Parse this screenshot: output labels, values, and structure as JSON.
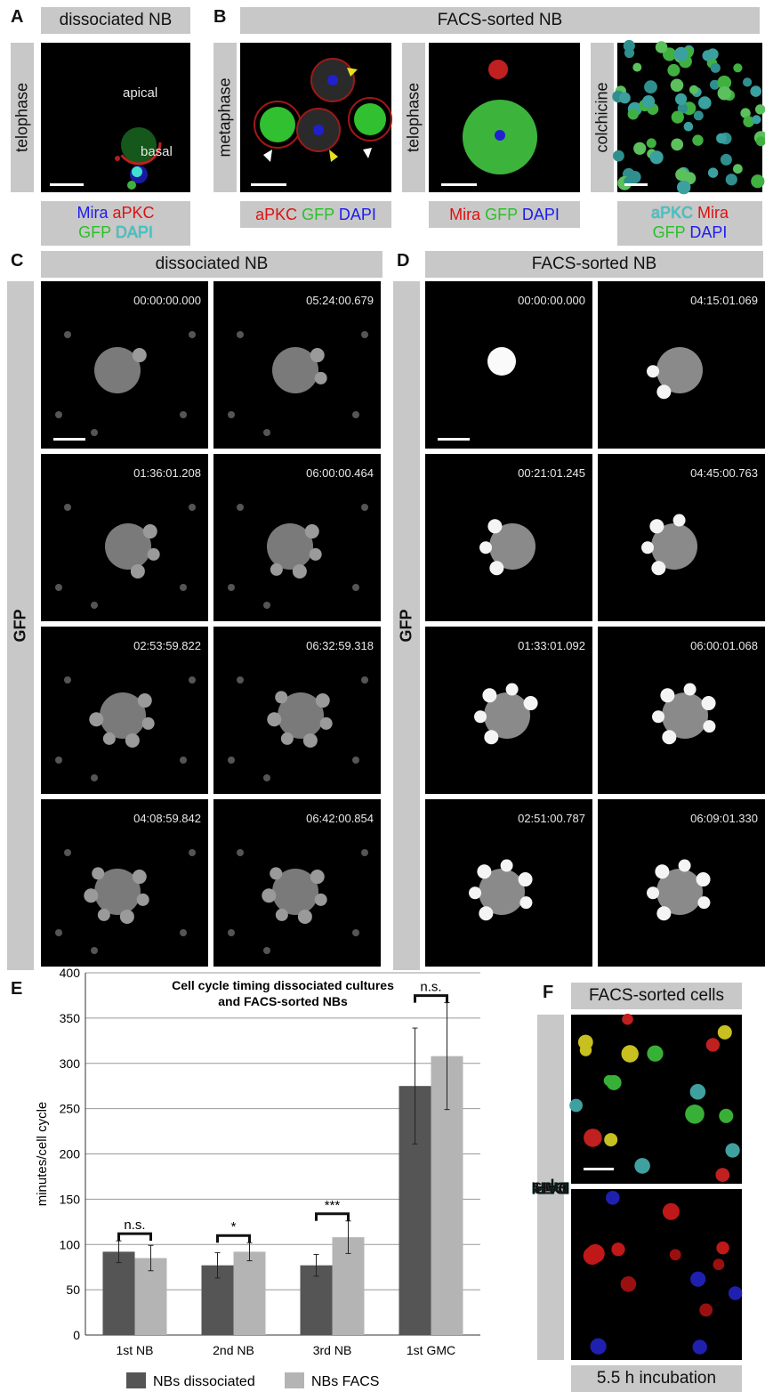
{
  "panels": {
    "A": {
      "letter": "A",
      "header": "dissociated NB",
      "side_label": "telophase",
      "labels": {
        "apical": "apical",
        "basal": "basal"
      },
      "legend": [
        [
          {
            "t": "Mira",
            "c": "blue"
          },
          {
            "t": " "
          },
          {
            "t": "aPKC",
            "c": "red"
          }
        ],
        [
          {
            "t": "GFP",
            "c": "green"
          },
          {
            "t": " "
          },
          {
            "t": "DAPI",
            "c": "cyan"
          }
        ]
      ]
    },
    "B": {
      "letter": "B",
      "header": "FACS-sorted NB",
      "side_labels": [
        "metaphase",
        "telophase",
        "colchicine"
      ],
      "legends": {
        "metaphase": [
          {
            "t": "aPKC",
            "c": "red"
          },
          {
            "t": " "
          },
          {
            "t": "GFP",
            "c": "green"
          },
          {
            "t": " "
          },
          {
            "t": "DAPI",
            "c": "blue"
          }
        ],
        "telophase": [
          {
            "t": "Mira",
            "c": "red"
          },
          {
            "t": " "
          },
          {
            "t": "GFP",
            "c": "green"
          },
          {
            "t": " "
          },
          {
            "t": "DAPI",
            "c": "blue"
          }
        ],
        "colchicine_l1": [
          {
            "t": "aPKC",
            "c": "cyan"
          },
          {
            "t": " "
          },
          {
            "t": "Mira",
            "c": "red"
          }
        ],
        "colchicine_l2": [
          {
            "t": "GFP",
            "c": "green"
          },
          {
            "t": " "
          },
          {
            "t": "DAPI",
            "c": "blue"
          }
        ]
      }
    },
    "C": {
      "letter": "C",
      "header": "dissociated NB",
      "side_label": "GFP",
      "timestamps": [
        "00:00:00.000",
        "05:24:00.679",
        "01:36:01.208",
        "06:00:00.464",
        "02:53:59.822",
        "06:32:59.318",
        "04:08:59.842",
        "06:42:00.854"
      ]
    },
    "D": {
      "letter": "D",
      "header": "FACS-sorted NB",
      "side_label": "GFP",
      "timestamps": [
        "00:00:00.000",
        "04:15:01.069",
        "00:21:01.245",
        "04:45:00.763",
        "01:33:01.092",
        "06:00:01.068",
        "02:51:00.787",
        "06:09:01.330"
      ]
    },
    "E": {
      "letter": "E"
    },
    "F": {
      "letter": "F",
      "header": "FACS-sorted cells",
      "side_label": [
        {
          "t": "Dpn",
          "c": "blue"
        },
        {
          "t": " "
        },
        {
          "t": "Pros",
          "c": "red"
        },
        {
          "t": " "
        },
        {
          "t": "GFP",
          "c": "green"
        },
        {
          "t": " "
        },
        {
          "t": "DAPI",
          "c": "cyan"
        }
      ],
      "footer": "5.5 h incubation"
    }
  },
  "chart_data": {
    "type": "bar",
    "title": "Cell cycle timing dissociated cultures and FACS-sorted NBs",
    "title_lines": [
      "Cell cycle timing dissociated cultures",
      "and FACS-sorted NBs"
    ],
    "ylabel": "minutes/cell cycle",
    "ylim": [
      0,
      400
    ],
    "yticks": [
      0,
      50,
      100,
      150,
      200,
      250,
      300,
      350,
      400
    ],
    "categories": [
      "1st NB",
      "2nd NB",
      "3rd NB",
      "1st GMC"
    ],
    "series": [
      {
        "name": "NBs dissociated",
        "color": "#555555",
        "values": [
          92,
          77,
          77,
          275
        ],
        "errors": [
          12,
          14,
          12,
          64
        ]
      },
      {
        "name": "NBs FACS",
        "color": "#b4b4b4",
        "values": [
          85,
          92,
          108,
          308
        ],
        "errors": [
          14,
          10,
          18,
          59
        ]
      }
    ],
    "significance": [
      "n.s.",
      "*",
      "***",
      "n.s."
    ],
    "grid": true,
    "legend_position": "bottom"
  }
}
